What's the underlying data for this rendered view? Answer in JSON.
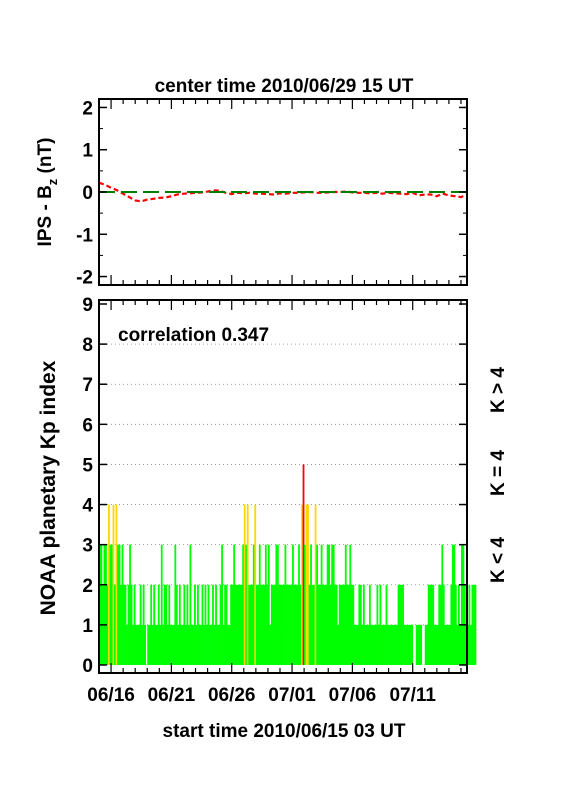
{
  "chart_data": [
    {
      "type": "line",
      "title": "center time 2010/06/29 15 UT",
      "ylabel": "IPS - B",
      "ylabel_sub": "z",
      "ylabel_unit": " (nT)",
      "ylim": [
        -2.2,
        2.2
      ],
      "yticks": [
        2,
        1,
        0,
        -1,
        -2
      ],
      "ytick_labels": [
        "2",
        "1",
        "0",
        "-1",
        "-2"
      ],
      "series": [
        {
          "color": "#ff0000",
          "dash": "short",
          "x": [
            0,
            0.5,
            1,
            1.5,
            2,
            2.5,
            3,
            3.5,
            4,
            4.5,
            5,
            5.5,
            6,
            6.5,
            7,
            7.5,
            8,
            8.5,
            9,
            9.5,
            10,
            10.5,
            11,
            11.5,
            12,
            12.5,
            13,
            13.5,
            14,
            14.5,
            15,
            15.5,
            16,
            16.5,
            17,
            17.5,
            18,
            18.5,
            19,
            19.5,
            20,
            20.5,
            21,
            21.5,
            22,
            22.5,
            23,
            23.5,
            24,
            24.5,
            25,
            25.5,
            26,
            26.5,
            27,
            27.5,
            28,
            28.5,
            29,
            29.5,
            30,
            30.5
          ],
          "y": [
            0.22,
            0.17,
            0.1,
            0.04,
            -0.04,
            -0.12,
            -0.2,
            -0.22,
            -0.18,
            -0.16,
            -0.14,
            -0.13,
            -0.1,
            -0.06,
            -0.04,
            -0.03,
            -0.02,
            -0.01,
            0.01,
            0.04,
            0.03,
            -0.02,
            -0.05,
            -0.02,
            -0.03,
            -0.02,
            -0.04,
            -0.04,
            -0.05,
            -0.06,
            -0.03,
            -0.04,
            -0.02,
            -0.02,
            -0.01,
            0.0,
            -0.02,
            -0.02,
            -0.01,
            0.0,
            0.0,
            0.01,
            -0.01,
            -0.02,
            -0.02,
            -0.03,
            -0.02,
            -0.04,
            -0.02,
            -0.03,
            -0.04,
            -0.05,
            -0.02,
            -0.08,
            -0.06,
            -0.06,
            -0.1,
            -0.04,
            -0.08,
            -0.1,
            -0.12,
            -0.06
          ]
        },
        {
          "color": "#008000",
          "dash": "long",
          "x": [
            0,
            30.5
          ],
          "y": [
            0,
            0
          ]
        }
      ]
    },
    {
      "type": "bar",
      "ylabel": "NOAA planetary Kp index",
      "xlabel": "start time 2010/06/15 03 UT",
      "annotation": "correlation 0.347",
      "ylim": [
        -0.2,
        9.1
      ],
      "yticks": [
        0,
        1,
        2,
        3,
        4,
        5,
        6,
        7,
        8,
        9
      ],
      "ytick_labels": [
        "0",
        "1",
        "2",
        "3",
        "4",
        "5",
        "6",
        "7",
        "8",
        "9"
      ],
      "grid": true,
      "xlim": [
        0,
        30.5
      ],
      "xticks": [
        1,
        6,
        11,
        16,
        21,
        26
      ],
      "xtick_labels": [
        "06/16",
        "06/21",
        "06/26",
        "07/01",
        "07/06",
        "07/11"
      ],
      "bin_width_days": 0.125,
      "legend": [
        {
          "label": "K > 4",
          "color": "#ff0000"
        },
        {
          "label": "K = 4",
          "color": "#ffd700"
        },
        {
          "label": "K < 4",
          "color": "#00ff00"
        }
      ],
      "colors": {
        "low": "#00ff00",
        "mid": "#ffd700",
        "high": "#ff0000"
      },
      "values": [
        3,
        3,
        2,
        3,
        3,
        2,
        4,
        3,
        3,
        4,
        2,
        4,
        3,
        3,
        2,
        3,
        2,
        2,
        1,
        2,
        3,
        2,
        1,
        2,
        1,
        1,
        1,
        2,
        1,
        2,
        1,
        0,
        1,
        1,
        2,
        1,
        2,
        1,
        1,
        2,
        1,
        3,
        1,
        2,
        2,
        1,
        2,
        1,
        1,
        1,
        3,
        2,
        1,
        2,
        1,
        1,
        2,
        1,
        2,
        1,
        3,
        1,
        1,
        2,
        1,
        2,
        1,
        1,
        2,
        1,
        2,
        1,
        2,
        1,
        1,
        2,
        1,
        2,
        1,
        1,
        2,
        3,
        1,
        2,
        2,
        1,
        1,
        2,
        2,
        3,
        2,
        2,
        2,
        2,
        2,
        3,
        4,
        3,
        4,
        2,
        2,
        2,
        3,
        4,
        2,
        2,
        3,
        2,
        2,
        2,
        3,
        2,
        3,
        1,
        2,
        2,
        2,
        3,
        3,
        2,
        2,
        2,
        2,
        3,
        2,
        2,
        2,
        2,
        3,
        2,
        2,
        2,
        3,
        2,
        4,
        5,
        3,
        4,
        4,
        2,
        3,
        2,
        2,
        4,
        3,
        2,
        2,
        3,
        2,
        2,
        2,
        3,
        3,
        2,
        3,
        3,
        2,
        2,
        1,
        2,
        2,
        2,
        2,
        3,
        2,
        2,
        3,
        2,
        2,
        1,
        1,
        1,
        2,
        2,
        1,
        2,
        1,
        1,
        1,
        2,
        1,
        1,
        1,
        1,
        2,
        1,
        2,
        1,
        1,
        1,
        2,
        1,
        1,
        1,
        1,
        1,
        1,
        1,
        2,
        2,
        2,
        2,
        1,
        1,
        1,
        1,
        1,
        1,
        0,
        0,
        1,
        1,
        1,
        1,
        0,
        0,
        1,
        1,
        2,
        2,
        2,
        2,
        1,
        1,
        1,
        2,
        2,
        3,
        2,
        1,
        1,
        1,
        1,
        2,
        3,
        3,
        2,
        1,
        2,
        1,
        3,
        3,
        2,
        1,
        1,
        2,
        1,
        2,
        2,
        2
      ]
    }
  ]
}
